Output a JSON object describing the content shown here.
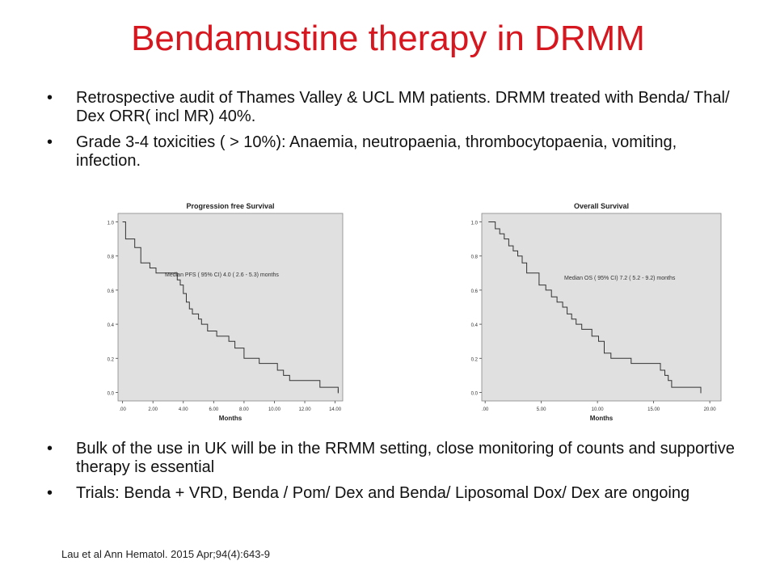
{
  "title": "Bendamustine therapy in DRMM",
  "bullets_top": [
    "Retrospective audit of Thames Valley & UCL MM patients. DRMM treated with Benda/ Thal/ Dex ORR( incl MR) 40%.",
    "Grade 3-4 toxicities ( > 10%): Anaemia, neutropaenia, thrombocytopaenia, vomiting, infection."
  ],
  "bullets_bottom": [
    "Bulk of the use in UK will be in the RRMM setting, close monitoring of counts and supportive therapy is essential",
    "Trials: Benda + VRD, Benda / Pom/ Dex and Benda/ Liposomal Dox/ Dex are ongoing"
  ],
  "citation": "Lau et al Ann Hematol. 2015 Apr;94(4):643-9",
  "colors": {
    "title": "#d7171f",
    "plot_bg": "#e0e0e0",
    "line": "#333333"
  },
  "chart_data": [
    {
      "type": "line",
      "title": "Progression free Survival",
      "xlabel": "Months",
      "ylabel": "",
      "annotation": "Median PFS ( 95% CI) 4.0 ( 2.6 - 5.3) months",
      "xlim": [
        -0.3,
        14.5
      ],
      "ylim": [
        -0.05,
        1.05
      ],
      "x_ticks": [
        0,
        2,
        4,
        6,
        8,
        10,
        12,
        14
      ],
      "x_tick_labels": [
        ".00",
        "2.00",
        "4.00",
        "6.00",
        "8.00",
        "10.00",
        "12.00",
        "14.00"
      ],
      "y_ticks": [
        0,
        0.2,
        0.4,
        0.6,
        0.8,
        1.0
      ],
      "y_tick_labels": [
        "0.0",
        "0.2",
        "0.4",
        "0.6",
        "0.8",
        "1.0"
      ],
      "grid": false,
      "series": [
        {
          "step": true,
          "points": [
            [
              0,
              1.0
            ],
            [
              0.2,
              1.0
            ],
            [
              0.2,
              0.9
            ],
            [
              0.8,
              0.9
            ],
            [
              0.8,
              0.85
            ],
            [
              1.2,
              0.85
            ],
            [
              1.2,
              0.76
            ],
            [
              1.8,
              0.76
            ],
            [
              1.8,
              0.73
            ],
            [
              2.2,
              0.73
            ],
            [
              2.2,
              0.7
            ],
            [
              3.6,
              0.7
            ],
            [
              3.6,
              0.66
            ],
            [
              3.8,
              0.66
            ],
            [
              3.8,
              0.63
            ],
            [
              4.0,
              0.63
            ],
            [
              4.0,
              0.58
            ],
            [
              4.2,
              0.58
            ],
            [
              4.2,
              0.53
            ],
            [
              4.4,
              0.53
            ],
            [
              4.4,
              0.49
            ],
            [
              4.6,
              0.49
            ],
            [
              4.6,
              0.46
            ],
            [
              5.0,
              0.46
            ],
            [
              5.0,
              0.43
            ],
            [
              5.2,
              0.43
            ],
            [
              5.2,
              0.4
            ],
            [
              5.6,
              0.4
            ],
            [
              5.6,
              0.36
            ],
            [
              6.2,
              0.36
            ],
            [
              6.2,
              0.33
            ],
            [
              7.0,
              0.33
            ],
            [
              7.0,
              0.3
            ],
            [
              7.4,
              0.3
            ],
            [
              7.4,
              0.26
            ],
            [
              8.0,
              0.26
            ],
            [
              8.0,
              0.2
            ],
            [
              9.0,
              0.2
            ],
            [
              9.0,
              0.17
            ],
            [
              10.2,
              0.17
            ],
            [
              10.2,
              0.13
            ],
            [
              10.6,
              0.13
            ],
            [
              10.6,
              0.1
            ],
            [
              11.0,
              0.1
            ],
            [
              11.0,
              0.07
            ],
            [
              13.0,
              0.07
            ],
            [
              13.0,
              0.03
            ],
            [
              14.2,
              0.03
            ],
            [
              14.2,
              0.0
            ]
          ]
        }
      ]
    },
    {
      "type": "line",
      "title": "Overall Survival",
      "xlabel": "Months",
      "ylabel": "",
      "annotation": "Median OS ( 95% CI) 7.2 ( 5.2 - 9.2) months",
      "xlim": [
        -0.3,
        21.0
      ],
      "ylim": [
        -0.05,
        1.05
      ],
      "x_ticks": [
        0,
        5,
        10,
        15,
        20
      ],
      "x_tick_labels": [
        ".00",
        "5.00",
        "10.00",
        "15.00",
        "20.00"
      ],
      "y_ticks": [
        0,
        0.2,
        0.4,
        0.6,
        0.8,
        1.0
      ],
      "y_tick_labels": [
        "0.0",
        "0.2",
        "0.4",
        "0.6",
        "0.8",
        "1.0"
      ],
      "grid": false,
      "series": [
        {
          "step": true,
          "points": [
            [
              0.3,
              1.0
            ],
            [
              0.9,
              1.0
            ],
            [
              0.9,
              0.96
            ],
            [
              1.3,
              0.96
            ],
            [
              1.3,
              0.93
            ],
            [
              1.7,
              0.93
            ],
            [
              1.7,
              0.9
            ],
            [
              2.1,
              0.9
            ],
            [
              2.1,
              0.86
            ],
            [
              2.5,
              0.86
            ],
            [
              2.5,
              0.83
            ],
            [
              2.9,
              0.83
            ],
            [
              2.9,
              0.8
            ],
            [
              3.3,
              0.8
            ],
            [
              3.3,
              0.76
            ],
            [
              3.7,
              0.76
            ],
            [
              3.7,
              0.7
            ],
            [
              4.8,
              0.7
            ],
            [
              4.8,
              0.63
            ],
            [
              5.4,
              0.63
            ],
            [
              5.4,
              0.6
            ],
            [
              5.9,
              0.6
            ],
            [
              5.9,
              0.56
            ],
            [
              6.4,
              0.56
            ],
            [
              6.4,
              0.53
            ],
            [
              6.9,
              0.53
            ],
            [
              6.9,
              0.5
            ],
            [
              7.3,
              0.5
            ],
            [
              7.3,
              0.46
            ],
            [
              7.7,
              0.46
            ],
            [
              7.7,
              0.43
            ],
            [
              8.1,
              0.43
            ],
            [
              8.1,
              0.4
            ],
            [
              8.6,
              0.4
            ],
            [
              8.6,
              0.37
            ],
            [
              9.5,
              0.37
            ],
            [
              9.5,
              0.33
            ],
            [
              10.1,
              0.33
            ],
            [
              10.1,
              0.3
            ],
            [
              10.6,
              0.3
            ],
            [
              10.6,
              0.23
            ],
            [
              11.2,
              0.23
            ],
            [
              11.2,
              0.2
            ],
            [
              13.0,
              0.2
            ],
            [
              13.0,
              0.17
            ],
            [
              15.6,
              0.17
            ],
            [
              15.6,
              0.13
            ],
            [
              16.0,
              0.13
            ],
            [
              16.0,
              0.1
            ],
            [
              16.3,
              0.1
            ],
            [
              16.3,
              0.07
            ],
            [
              16.6,
              0.07
            ],
            [
              16.6,
              0.03
            ],
            [
              19.2,
              0.03
            ],
            [
              19.2,
              0.0
            ]
          ]
        }
      ]
    }
  ]
}
